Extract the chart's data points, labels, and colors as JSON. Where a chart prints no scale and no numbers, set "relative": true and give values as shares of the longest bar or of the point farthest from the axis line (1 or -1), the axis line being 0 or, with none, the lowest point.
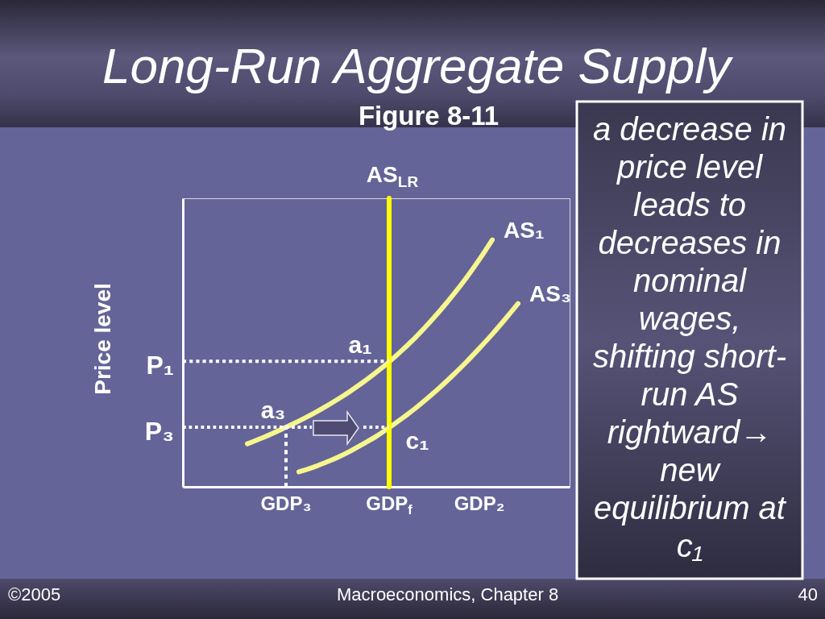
{
  "chart_data": {
    "type": "line",
    "relative": true,
    "title": "Long-Run Aggregate Supply",
    "subtitle": "Figure 8-11",
    "ylabel": "Price level",
    "categories": [
      null,
      null,
      null,
      null,
      null,
      null,
      null,
      null,
      "GDP₃",
      null,
      null,
      null,
      null,
      null,
      null,
      null,
      "GDP$_{f}$",
      null,
      null,
      null,
      null,
      null,
      null,
      "GDP₂",
      null,
      null,
      null,
      null,
      null,
      null,
      null
    ],
    "tick_labels": "x",
    "series": [
      {
        "name": "AS₁",
        "color": "#f6f68e",
        "values": [
          null,
          null,
          null,
          null,
          null,
          0.149,
          0.167,
          0.186,
          0.207,
          0.228,
          0.251,
          0.276,
          0.303,
          0.332,
          0.363,
          0.397,
          0.433,
          0.473,
          0.516,
          0.563,
          0.613,
          0.667,
          0.725,
          0.788,
          0.856,
          null,
          null,
          null,
          null,
          null,
          null
        ]
      },
      {
        "name": "AS₃",
        "color": "#f6f68e",
        "values": [
          null,
          null,
          null,
          null,
          null,
          null,
          null,
          null,
          null,
          0.052,
          0.066,
          0.083,
          0.102,
          0.124,
          0.149,
          0.175,
          0.205,
          0.237,
          0.271,
          0.308,
          0.347,
          0.389,
          0.433,
          0.48,
          0.529,
          0.581,
          0.635,
          null,
          null,
          null,
          null
        ]
      },
      {
        "name": "AS$_{LR}$",
        "color": "#ffff00",
        "x": [
          "GDP$_{f}$",
          "GDP$_{f}$"
        ],
        "values": [
          0,
          1
        ]
      },
      {
        "color": "#ffffff",
        "line_style": "dotted",
        "values": [
          0.435,
          0.435,
          0.435,
          0.435,
          0.435,
          0.435,
          0.435,
          0.435,
          0.435,
          0.435,
          0.435,
          0.435,
          0.435,
          0.435,
          0.435,
          0.435,
          0.435,
          null,
          null,
          null,
          null,
          null,
          null,
          null,
          null,
          null,
          null,
          null,
          null,
          null,
          null
        ]
      },
      {
        "color": "#ffffff",
        "line_style": "dotted",
        "values": [
          0.207,
          0.207,
          0.207,
          0.207,
          0.207,
          0.207,
          0.207,
          0.207,
          0.207,
          0.207,
          0.207,
          null,
          null,
          null,
          0.207,
          0.207,
          0.207,
          null,
          null,
          null,
          null,
          null,
          null,
          null,
          null,
          null,
          null,
          null,
          null,
          null,
          null
        ]
      },
      {
        "color": "#ffffff",
        "line_style": "dotted",
        "x": [
          "GDP₃",
          "GDP₃"
        ],
        "values": [
          0,
          0.207
        ]
      }
    ],
    "annotations": [
      {
        "text": "a₁",
        "x": "GDP$_{f}$",
        "y": 0.435
      },
      {
        "text": "a₃",
        "x": "GDP₃",
        "y": 0.207
      },
      {
        "text": "c₁",
        "x": "GDP$_{f}$",
        "y": 0.207
      },
      "P₁",
      "P₃",
      "a decrease in price level leads to decreases in nominal wages, shifting short-run AS rightward→ new equilibrium at c₁",
      "©2005",
      "Macroeconomics, Chapter 8",
      "40"
    ]
  }
}
